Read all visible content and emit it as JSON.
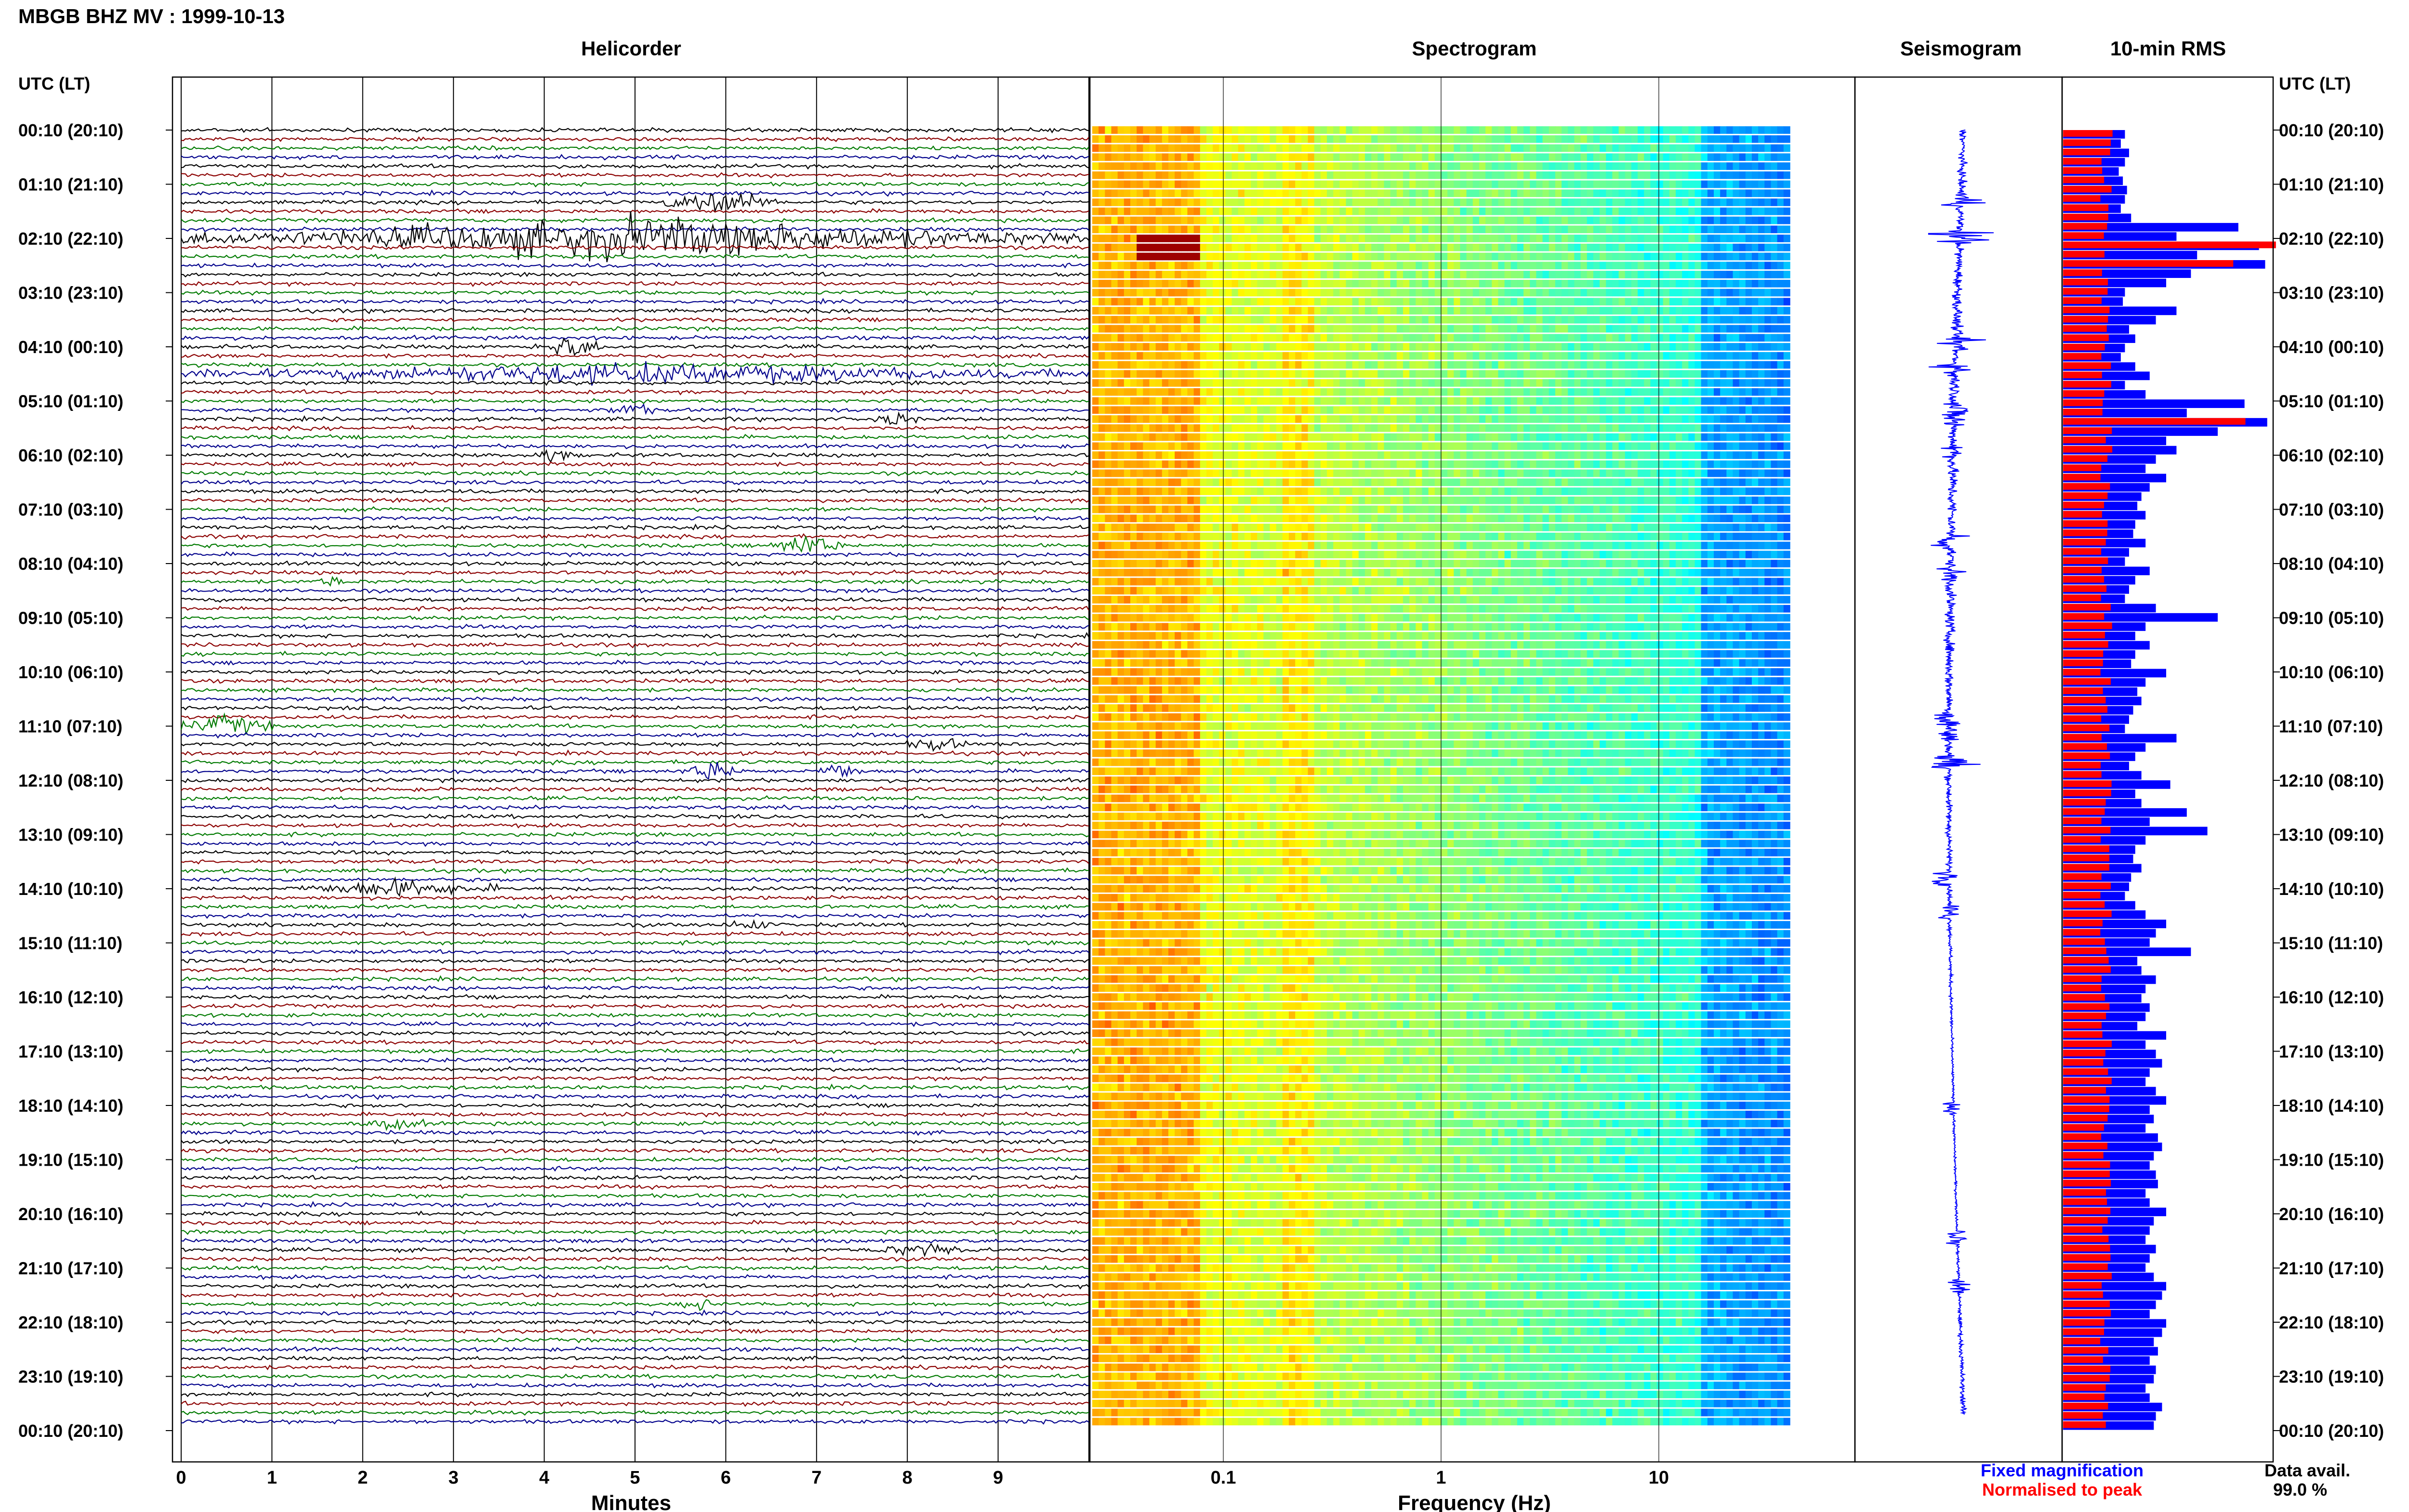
{
  "header": {
    "title": "MBGB BHZ MV : 1999-10-13"
  },
  "panels": {
    "helicorder": "Helicorder",
    "spectrogram": "Spectrogram",
    "seismogram": "Seismogram",
    "rms": "10-min RMS"
  },
  "axes": {
    "left_axis_title": "UTC (LT)",
    "right_axis_title": "UTC (LT)",
    "minutes_label": "Minutes",
    "frequency_label": "Frequency (Hz)"
  },
  "legend": {
    "fixed": "Fixed magnification",
    "normalised": "Normalised to peak",
    "fixed_color": "#0000ff",
    "normalised_color": "#ff0000",
    "data_avail_label": "Data avail.",
    "data_avail_value": "99.0 %"
  },
  "colors": {
    "trace_cycle": [
      "#000000",
      "#8b0000",
      "#007a00",
      "#00008b"
    ],
    "rms_fixed": "#0000ff",
    "rms_normalised": "#ff0000",
    "seismogram": "#0000ff"
  },
  "chart_data": {
    "type": "heatmap",
    "time_labels": [
      "00:10 (20:10)",
      "01:10 (21:10)",
      "02:10 (22:10)",
      "03:10 (23:10)",
      "04:10 (00:10)",
      "05:10 (01:10)",
      "06:10 (02:10)",
      "07:10 (03:10)",
      "08:10 (04:10)",
      "09:10 (05:10)",
      "10:10 (06:10)",
      "11:10 (07:10)",
      "12:10 (08:10)",
      "13:10 (09:10)",
      "14:10 (10:10)",
      "15:10 (11:10)",
      "16:10 (12:10)",
      "17:10 (13:10)",
      "18:10 (14:10)",
      "19:10 (15:10)",
      "20:10 (16:10)",
      "21:10 (17:10)",
      "22:10 (18:10)",
      "23:10 (19:10)",
      "00:10 (20:10)"
    ],
    "minute_ticks": [
      "0",
      "1",
      "2",
      "3",
      "4",
      "5",
      "6",
      "7",
      "8",
      "9"
    ],
    "freq_ticks": [
      "0.1",
      "1",
      "10"
    ],
    "freq_range_hz": [
      0.025,
      40
    ],
    "minutes_range": [
      0,
      10
    ],
    "traces_per_hour": 6,
    "events": [
      {
        "hour": 1.3,
        "minute_start": 5.3,
        "minute_end": 6.6,
        "amp": 1.8
      },
      {
        "hour": 2.0,
        "minute_start": 0.0,
        "minute_end": 10.0,
        "amp": 2.4
      },
      {
        "hour": 4.0,
        "minute_start": 3.9,
        "minute_end": 4.7,
        "amp": 1.4
      },
      {
        "hour": 4.5,
        "minute_start": 0.0,
        "minute_end": 10.0,
        "amp": 1.2
      },
      {
        "hour": 5.2,
        "minute_start": 4.7,
        "minute_end": 5.2,
        "amp": 1.0
      },
      {
        "hour": 5.4,
        "minute_start": 7.6,
        "minute_end": 8.1,
        "amp": 0.9
      },
      {
        "hour": 6.0,
        "minute_start": 3.9,
        "minute_end": 4.3,
        "amp": 0.9
      },
      {
        "hour": 7.7,
        "minute_start": 6.5,
        "minute_end": 7.3,
        "amp": 1.5
      },
      {
        "hour": 8.3,
        "minute_start": 1.5,
        "minute_end": 1.8,
        "amp": 0.7
      },
      {
        "hour": 11.0,
        "minute_start": 0.0,
        "minute_end": 1.0,
        "amp": 1.3
      },
      {
        "hour": 11.3,
        "minute_start": 8.0,
        "minute_end": 8.7,
        "amp": 0.8
      },
      {
        "hour": 11.8,
        "minute_start": 5.5,
        "minute_end": 6.2,
        "amp": 1.2
      },
      {
        "hour": 11.8,
        "minute_start": 7.0,
        "minute_end": 7.5,
        "amp": 1.2
      },
      {
        "hour": 14.0,
        "minute_start": 1.2,
        "minute_end": 3.5,
        "amp": 1.0
      },
      {
        "hour": 14.6,
        "minute_start": 6.0,
        "minute_end": 6.5,
        "amp": 0.8
      },
      {
        "hour": 18.3,
        "minute_start": 2.0,
        "minute_end": 2.7,
        "amp": 0.7
      },
      {
        "hour": 20.7,
        "minute_start": 7.6,
        "minute_end": 8.8,
        "amp": 0.8
      },
      {
        "hour": 21.6,
        "minute_start": 5.5,
        "minute_end": 5.9,
        "amp": 0.8
      }
    ],
    "rms": {
      "note": "10-minute RMS bars, fraction of panel width",
      "fixed": [
        0.3,
        0.28,
        0.32,
        0.3,
        0.27,
        0.29,
        0.31,
        0.3,
        0.28,
        0.33,
        0.85,
        0.55,
        0.95,
        0.65,
        0.98,
        0.62,
        0.5,
        0.3,
        0.29,
        0.55,
        0.45,
        0.32,
        0.35,
        0.3,
        0.28,
        0.35,
        0.42,
        0.3,
        0.4,
        0.88,
        0.6,
        0.99,
        0.75,
        0.5,
        0.55,
        0.45,
        0.4,
        0.5,
        0.42,
        0.38,
        0.36,
        0.4,
        0.35,
        0.34,
        0.4,
        0.32,
        0.3,
        0.42,
        0.35,
        0.32,
        0.3,
        0.45,
        0.75,
        0.4,
        0.35,
        0.42,
        0.35,
        0.33,
        0.5,
        0.4,
        0.36,
        0.38,
        0.34,
        0.32,
        0.3,
        0.55,
        0.4,
        0.35,
        0.32,
        0.38,
        0.52,
        0.35,
        0.38,
        0.6,
        0.42,
        0.7,
        0.4,
        0.35,
        0.34,
        0.38,
        0.33,
        0.32,
        0.3,
        0.35,
        0.4,
        0.5,
        0.45,
        0.42,
        0.62,
        0.36,
        0.38,
        0.45,
        0.4,
        0.38,
        0.42,
        0.4,
        0.36,
        0.5,
        0.4,
        0.45,
        0.48,
        0.42,
        0.4,
        0.45,
        0.5,
        0.42,
        0.44,
        0.4,
        0.46,
        0.48,
        0.44,
        0.42,
        0.45,
        0.46,
        0.4,
        0.42,
        0.5,
        0.44,
        0.42,
        0.4,
        0.45,
        0.42,
        0.4,
        0.44,
        0.5,
        0.48,
        0.45,
        0.42,
        0.5,
        0.48,
        0.44,
        0.46,
        0.42,
        0.45,
        0.44,
        0.4,
        0.42,
        0.48,
        0.45,
        0.44
      ],
      "normalised_max": 0.25
    }
  }
}
